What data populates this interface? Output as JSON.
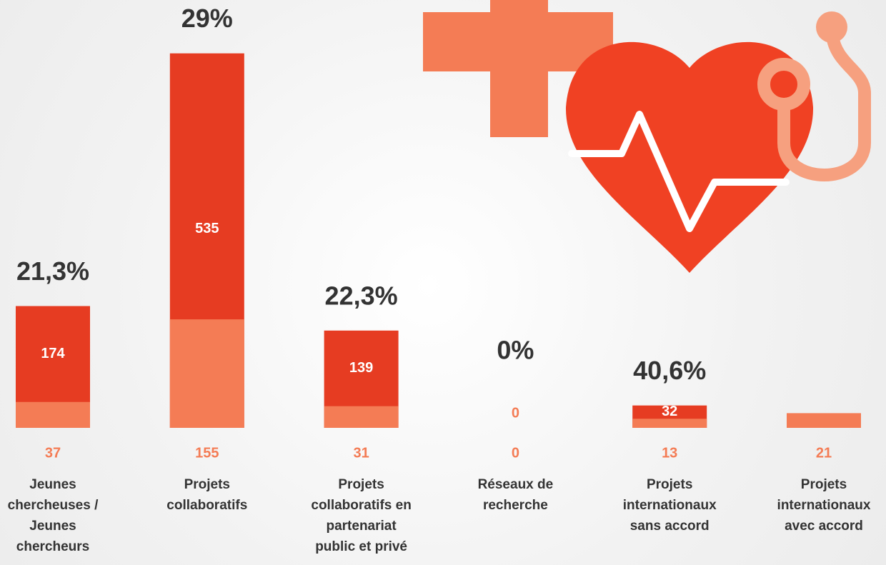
{
  "chart_data": {
    "type": "bar",
    "categories": [
      "Jeunes chercheuses / Jeunes chercheurs",
      "Projets collaboratifs",
      "Projets collaboratifs en partenariat public et privé",
      "Réseaux de recherche",
      "Projets internationaux sans accord",
      "Projets internationaux avec accord"
    ],
    "series": [
      {
        "color": "#e63c22",
        "values": [
          174,
          535,
          139,
          0,
          32,
          null
        ]
      },
      {
        "color": "#f47c55",
        "values": [
          37,
          155,
          31,
          0,
          13,
          21
        ]
      }
    ],
    "percentages": {
      "values": [
        21.3,
        29,
        22.3,
        0,
        40.6,
        null
      ],
      "value_labels": [
        "21,3%",
        "29%",
        "22,3%",
        "0%",
        "40,6%",
        null
      ]
    }
  }
}
